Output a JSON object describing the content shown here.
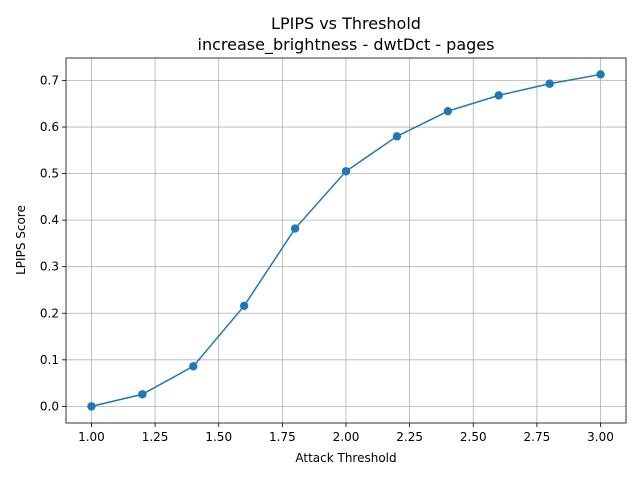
{
  "chart_data": {
    "type": "line",
    "title": "LPIPS vs Threshold",
    "subtitle": "increase_brightness - dwtDct - pages",
    "xlabel": "Attack Threshold",
    "ylabel": "LPIPS Score",
    "xlim": [
      0.9,
      3.1
    ],
    "ylim": [
      -0.0357,
      0.7483
    ],
    "grid": true,
    "x_ticks": [
      1.0,
      1.25,
      1.5,
      1.75,
      2.0,
      2.25,
      2.5,
      2.75,
      3.0
    ],
    "x_tick_labels": [
      "1.00",
      "1.25",
      "1.50",
      "1.75",
      "2.00",
      "2.25",
      "2.50",
      "2.75",
      "3.00"
    ],
    "y_ticks": [
      0.0,
      0.1,
      0.2,
      0.3,
      0.4,
      0.5,
      0.6,
      0.7
    ],
    "y_tick_labels": [
      "0.0",
      "0.1",
      "0.2",
      "0.3",
      "0.4",
      "0.5",
      "0.6",
      "0.7"
    ],
    "series": [
      {
        "color": "#1f77b4",
        "marker": "circle",
        "x": [
          1.0,
          1.2,
          1.4,
          1.6,
          1.8,
          2.0,
          2.2,
          2.4,
          2.6,
          2.8,
          3.0
        ],
        "y": [
          0.0,
          0.026,
          0.086,
          0.216,
          0.382,
          0.505,
          0.58,
          0.634,
          0.668,
          0.693,
          0.713
        ]
      }
    ]
  }
}
